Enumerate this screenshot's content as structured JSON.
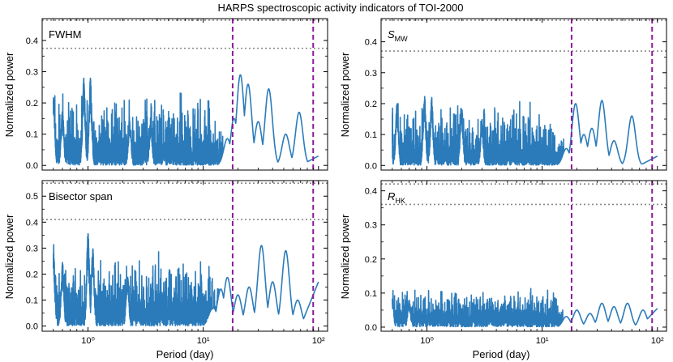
{
  "figure": {
    "title": "HARPS spectroscopic activity indicators of TOI-2000",
    "xlabel": "Period (day)",
    "ylabel": "Normalized power"
  },
  "style": {
    "series_color": "#2b7bba",
    "vline_color": "#8b1a9a",
    "hline_color": "#888888"
  },
  "chart_data": [
    {
      "type": "line",
      "panel": "top-left",
      "label": "FWHM",
      "label_sub": "",
      "xscale": "log",
      "xlim": [
        0.4,
        120
      ],
      "ylim": [
        -0.015,
        0.47
      ],
      "yticks": [
        0.0,
        0.1,
        0.2,
        0.3,
        0.4
      ],
      "ytick_labels": [
        "0.0",
        "0.1",
        "0.2",
        "0.3",
        "0.4"
      ],
      "xticks": [
        1,
        10,
        100
      ],
      "xtick_labels": [
        "",
        "",
        ""
      ],
      "hlines": [
        0.465,
        0.375
      ],
      "vlines": [
        18,
        90
      ],
      "x_range": [
        0.5,
        100
      ],
      "noise": {
        "max": 0.17,
        "min": 0.01,
        "spikes": [
          [
            0.92,
            0.28
          ],
          [
            1.05,
            0.28
          ],
          [
            0.5,
            0.22
          ],
          [
            0.6,
            0.18
          ],
          [
            2.3,
            0.16
          ],
          [
            3.5,
            0.15
          ]
        ]
      },
      "peaks": [
        [
          16,
          0.11
        ],
        [
          18.5,
          0.15
        ],
        [
          21,
          0.29
        ],
        [
          24.5,
          0.26
        ],
        [
          30,
          0.14
        ],
        [
          37,
          0.245
        ],
        [
          52,
          0.1
        ],
        [
          68,
          0.17
        ]
      ],
      "end_value": 0.03
    },
    {
      "type": "line",
      "panel": "top-right",
      "label": "S",
      "label_sub": "MW",
      "xscale": "log",
      "xlim": [
        0.4,
        120
      ],
      "ylim": [
        -0.015,
        0.475
      ],
      "yticks": [
        0.0,
        0.1,
        0.2,
        0.3,
        0.4
      ],
      "ytick_labels": [
        "0.0",
        "0.1",
        "0.2",
        "0.3",
        "0.4"
      ],
      "xticks": [
        1,
        10,
        100
      ],
      "xtick_labels": [
        "",
        "",
        ""
      ],
      "hlines": [
        0.47,
        0.37
      ],
      "vlines": [
        18,
        90
      ],
      "x_range": [
        0.5,
        100
      ],
      "noise": {
        "max": 0.14,
        "min": 0.01,
        "spikes": [
          [
            0.95,
            0.23
          ],
          [
            1.1,
            0.22
          ],
          [
            0.55,
            0.2
          ],
          [
            2.0,
            0.2
          ],
          [
            3.0,
            0.15
          ]
        ]
      },
      "peaks": [
        [
          16,
          0.07
        ],
        [
          19.5,
          0.2
        ],
        [
          23,
          0.1
        ],
        [
          27,
          0.12
        ],
        [
          33,
          0.21
        ],
        [
          42,
          0.08
        ],
        [
          60,
          0.16
        ]
      ],
      "end_value": 0.03
    },
    {
      "type": "line",
      "panel": "bottom-left",
      "label": "Bisector span",
      "label_sub": "",
      "xscale": "log",
      "xlim": [
        0.4,
        120
      ],
      "ylim": [
        -0.02,
        0.56
      ],
      "yticks": [
        0.0,
        0.1,
        0.2,
        0.3,
        0.4,
        0.5
      ],
      "ytick_labels": [
        "0.0",
        "0.1",
        "0.2",
        "0.3",
        "0.4",
        "0.5"
      ],
      "xticks": [
        1,
        10,
        100
      ],
      "xtick_labels": [
        "10⁰",
        "10¹",
        "10²"
      ],
      "hlines": [
        0.55,
        0.41
      ],
      "vlines": [
        18,
        90
      ],
      "x_range": [
        0.5,
        100
      ],
      "noise": {
        "max": 0.2,
        "min": 0.02,
        "spikes": [
          [
            0.5,
            0.33
          ],
          [
            1.0,
            0.36
          ],
          [
            1.1,
            0.3
          ],
          [
            0.6,
            0.25
          ],
          [
            2.2,
            0.2
          ]
        ]
      },
      "peaks": [
        [
          12,
          0.22
        ],
        [
          14,
          0.26
        ],
        [
          16,
          0.24
        ],
        [
          20,
          0.12
        ],
        [
          25,
          0.15
        ],
        [
          32,
          0.31
        ],
        [
          40,
          0.17
        ],
        [
          52,
          0.29
        ],
        [
          66,
          0.1
        ]
      ],
      "end_value": 0.17
    },
    {
      "type": "line",
      "panel": "bottom-right",
      "label": "R",
      "label_sub": "HK",
      "xscale": "log",
      "xlim": [
        0.4,
        120
      ],
      "ylim": [
        -0.012,
        0.43
      ],
      "yticks": [
        0.0,
        0.1,
        0.2,
        0.3,
        0.4
      ],
      "ytick_labels": [
        "0.0",
        "0.1",
        "0.2",
        "0.3",
        "0.4"
      ],
      "xticks": [
        1,
        10,
        100
      ],
      "xtick_labels": [
        "10⁰",
        "10¹",
        "10²"
      ],
      "hlines": [
        0.42,
        0.36
      ],
      "vlines": [
        18,
        90
      ],
      "x_range": [
        0.5,
        100
      ],
      "noise": {
        "max": 0.085,
        "min": 0.02,
        "spikes": [
          [
            0.5,
            0.09
          ],
          [
            0.7,
            0.08
          ]
        ]
      },
      "peaks": [
        [
          16,
          0.04
        ],
        [
          20,
          0.05
        ],
        [
          26,
          0.04
        ],
        [
          33,
          0.07
        ],
        [
          42,
          0.06
        ],
        [
          55,
          0.07
        ],
        [
          75,
          0.05
        ]
      ],
      "end_value": 0.055
    }
  ]
}
